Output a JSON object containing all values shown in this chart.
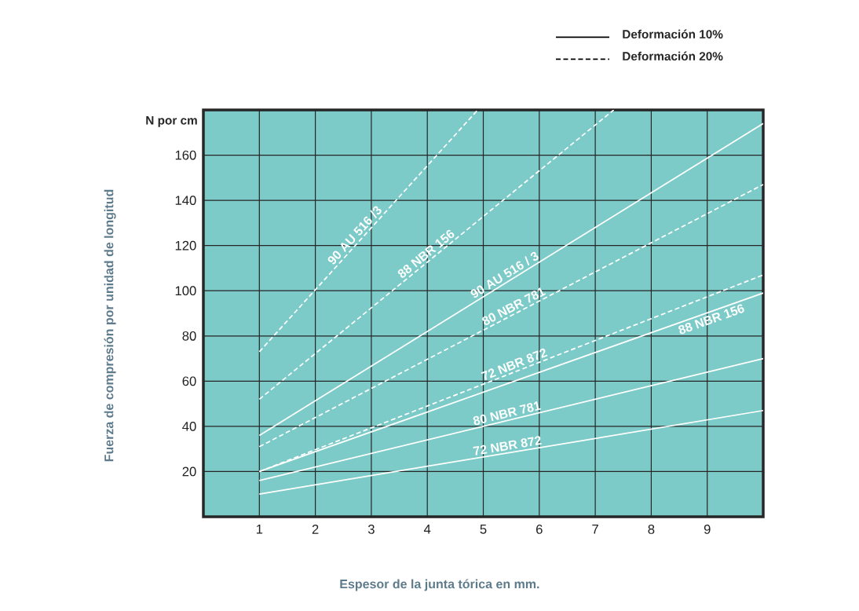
{
  "chart_data": {
    "type": "line",
    "xlabel": "Espesor de la junta tórica en mm.",
    "ylabel": "Fuerza de compresión por unidad de longitud",
    "annotations": [
      "Deformación 10%",
      "Deformación 20%",
      "N por cm"
    ],
    "xlim": [
      0,
      10
    ],
    "ylim": [
      0,
      180
    ],
    "xticks": [
      1,
      2,
      3,
      4,
      5,
      6,
      7,
      8,
      9
    ],
    "yticks": [
      20,
      40,
      60,
      80,
      100,
      120,
      140,
      160
    ],
    "grid": true,
    "series": [
      {
        "name": "90 AU 516 /3",
        "line_style": "dashed",
        "color": "#ffffff",
        "x": [
          1,
          4.9
        ],
        "values": [
          73,
          180
        ]
      },
      {
        "name": "88 NBR 156",
        "line_style": "dashed",
        "color": "#ffffff",
        "x": [
          1,
          7.33
        ],
        "values": [
          52,
          180
        ]
      },
      {
        "name": "90 AU 516 / 3",
        "line_style": "solid",
        "color": "#ffffff",
        "x": [
          1,
          10
        ],
        "values": [
          36,
          174
        ]
      },
      {
        "name": "80 NBR 781",
        "line_style": "dashed",
        "color": "#ffffff",
        "x": [
          1,
          10
        ],
        "values": [
          31,
          147
        ]
      },
      {
        "name": "72 NBR 872",
        "line_style": "dashed",
        "color": "#ffffff",
        "x": [
          1,
          10
        ],
        "values": [
          20,
          107
        ]
      },
      {
        "name": "88 NBR 156",
        "line_style": "solid",
        "color": "#ffffff",
        "x": [
          1,
          10
        ],
        "values": [
          20,
          99
        ]
      },
      {
        "name": "80 NBR 781",
        "line_style": "solid",
        "color": "#ffffff",
        "x": [
          1,
          10
        ],
        "values": [
          16,
          70
        ]
      },
      {
        "name": "72 NBR 872",
        "line_style": "solid",
        "color": "#ffffff",
        "x": [
          1,
          10
        ],
        "values": [
          10,
          47
        ]
      }
    ]
  }
}
